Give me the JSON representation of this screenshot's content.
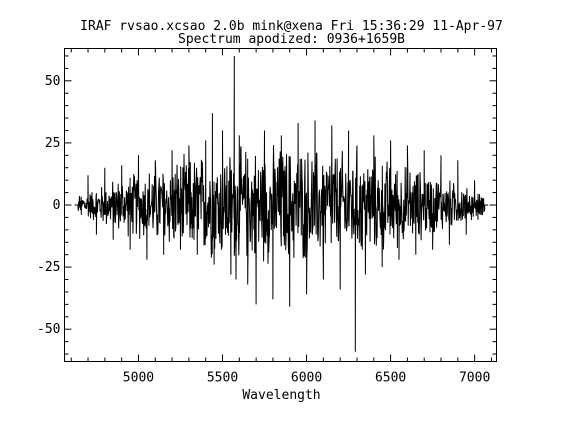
{
  "chart_data": {
    "type": "line",
    "title": "IRAF rvsao.xcsao 2.0b mink@xena Fri 15:36:29 11-Apr-97",
    "subtitle": "Spectrum apodized: 0936+1659B",
    "xlabel": "Wavelength",
    "ylabel": "",
    "xlim": [
      4560,
      7130
    ],
    "ylim": [
      -63,
      63
    ],
    "xticks": [
      5000,
      5500,
      6000,
      6500,
      7000
    ],
    "yticks": [
      -50,
      -25,
      0,
      25,
      50
    ],
    "grid": false,
    "series": [
      {
        "x": [
          4640,
          4650,
          4660,
          4700,
          4750,
          4800,
          4850,
          4900,
          4950,
          5000,
          5050,
          5100,
          5150,
          5200,
          5250,
          5300,
          5350,
          5400,
          5440,
          5450,
          5500,
          5550,
          5570,
          5580,
          5600,
          5650,
          5700,
          5750,
          5800,
          5850,
          5900,
          5950,
          6000,
          6050,
          6100,
          6150,
          6200,
          6250,
          6290,
          6300,
          6350,
          6400,
          6450,
          6500,
          6550,
          6600,
          6650,
          6700,
          6750,
          6800,
          6850,
          6900,
          6950,
          7000,
          7020,
          7040,
          7060
        ],
        "y": [
          0,
          3,
          -4,
          12,
          -12,
          15,
          -14,
          16,
          -18,
          20,
          -22,
          18,
          -20,
          22,
          -18,
          24,
          -20,
          26,
          37,
          -24,
          30,
          -28,
          60,
          -30,
          28,
          -32,
          -40,
          30,
          -38,
          28,
          -41,
          33,
          -36,
          34,
          -30,
          32,
          -34,
          30,
          -59,
          24,
          -28,
          28,
          -25,
          26,
          -22,
          24,
          -20,
          22,
          -18,
          20,
          -16,
          18,
          -12,
          10,
          -6,
          3,
          0
        ]
      }
    ]
  }
}
